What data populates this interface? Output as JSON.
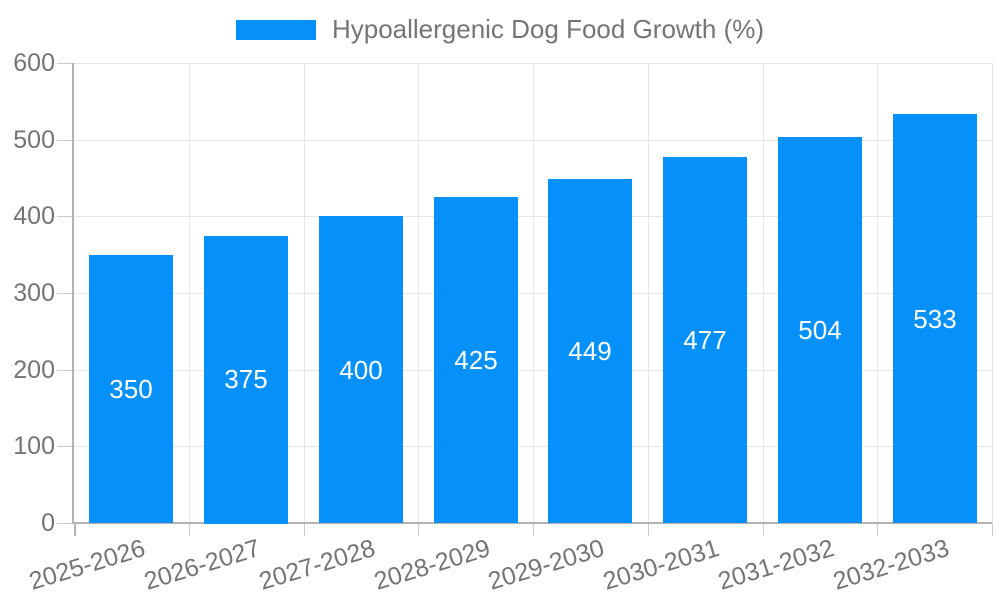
{
  "chart_data": {
    "type": "bar",
    "legend": "Hypoallergenic Dog Food Growth (%)",
    "legend_position": "top-center",
    "categories": [
      "2025-2026",
      "2026-2027",
      "2027-2028",
      "2028-2029",
      "2029-2030",
      "2030-2031",
      "2031-2032",
      "2032-2033"
    ],
    "values": [
      350,
      375,
      400,
      425,
      449,
      477,
      504,
      533
    ],
    "ylim": [
      0,
      600
    ],
    "yticks": [
      0,
      100,
      200,
      300,
      400,
      500,
      600
    ],
    "grid": true,
    "bar_color": "#0590fa",
    "bar_label_color": "#ffffff",
    "axis_text_color": "#757575",
    "gridline_color": "#e6e6e6",
    "axis_line_color": "#b3b3b3"
  }
}
